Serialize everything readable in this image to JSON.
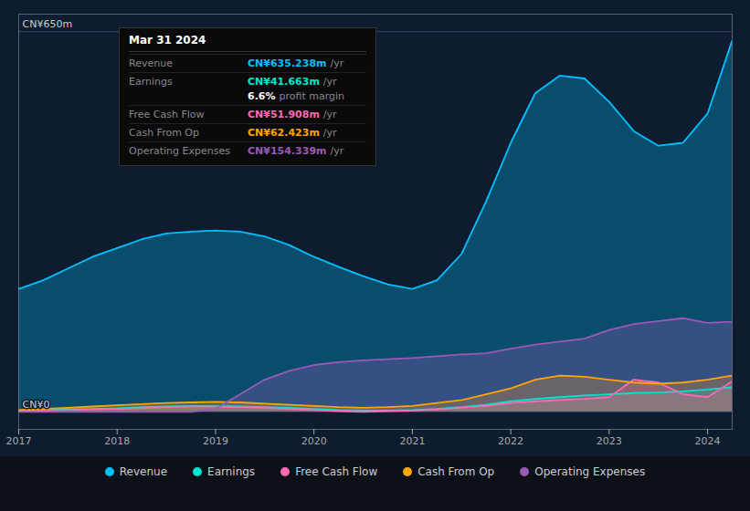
{
  "chart_data": {
    "type": "area",
    "x": [
      2017.0,
      2017.25,
      2017.5,
      2017.75,
      2018.0,
      2018.25,
      2018.5,
      2018.75,
      2019.0,
      2019.25,
      2019.5,
      2019.75,
      2020.0,
      2020.25,
      2020.5,
      2020.75,
      2021.0,
      2021.25,
      2021.5,
      2021.75,
      2022.0,
      2022.25,
      2022.5,
      2022.75,
      2023.0,
      2023.25,
      2023.5,
      2023.75,
      2024.0,
      2024.25
    ],
    "series": [
      {
        "name": "Revenue",
        "color": "#00bfff",
        "values": [
          210,
          225,
          245,
          265,
          280,
          295,
          305,
          308,
          310,
          308,
          300,
          285,
          265,
          248,
          232,
          218,
          210,
          225,
          270,
          360,
          460,
          545,
          575,
          570,
          530,
          480,
          455,
          460,
          510,
          635
        ]
      },
      {
        "name": "Earnings",
        "color": "#00e5cc",
        "values": [
          2,
          3,
          4,
          5,
          6,
          8,
          9,
          10,
          10,
          9,
          8,
          7,
          5,
          3,
          2,
          2,
          3,
          5,
          8,
          12,
          18,
          22,
          25,
          28,
          30,
          32,
          33,
          35,
          38,
          42
        ]
      },
      {
        "name": "Free Cash Flow",
        "color": "#ff69b4",
        "values": [
          1,
          2,
          3,
          4,
          5,
          6,
          8,
          9,
          9,
          8,
          7,
          5,
          3,
          1,
          0,
          1,
          2,
          4,
          7,
          10,
          15,
          18,
          20,
          22,
          25,
          55,
          50,
          30,
          25,
          52
        ]
      },
      {
        "name": "Cash From Op",
        "color": "#ffa500",
        "values": [
          3,
          5,
          7,
          9,
          11,
          13,
          15,
          16,
          17,
          16,
          14,
          12,
          10,
          8,
          7,
          8,
          10,
          15,
          20,
          30,
          40,
          55,
          62,
          60,
          55,
          50,
          48,
          50,
          55,
          62
        ]
      },
      {
        "name": "Operating Expenses",
        "color": "#9b59b6",
        "values": [
          0,
          0,
          0,
          0,
          0,
          0,
          0,
          0,
          5,
          30,
          55,
          70,
          80,
          85,
          88,
          90,
          92,
          95,
          98,
          100,
          108,
          115,
          120,
          125,
          140,
          150,
          155,
          160,
          152,
          154
        ]
      }
    ],
    "xlim": [
      2017,
      2024.25
    ],
    "xticks": [
      2017,
      2018,
      2019,
      2020,
      2021,
      2022,
      2023,
      2024
    ],
    "ylim": [
      -30,
      680
    ],
    "yticks": [
      {
        "value": 0,
        "label": "CN¥0"
      },
      {
        "value": 650,
        "label": "CN¥650m"
      }
    ],
    "grid": true,
    "legend": "bottom",
    "annotations": [
      {
        "title": "Mar 31 2024",
        "rows": [
          {
            "label": "Revenue",
            "value": "CN¥635.238m",
            "unit": "/yr",
            "color": "#00bfff"
          },
          {
            "label": "Earnings",
            "value": "CN¥41.663m",
            "unit": "/yr",
            "color": "#00e5cc"
          },
          {
            "value": "6.6%",
            "text": "profit margin"
          },
          {
            "label": "Free Cash Flow",
            "value": "CN¥51.908m",
            "unit": "/yr",
            "color": "#ff69b4"
          },
          {
            "label": "Cash From Op",
            "value": "CN¥62.423m",
            "unit": "/yr",
            "color": "#ffa500"
          },
          {
            "label": "Operating Expenses",
            "value": "CN¥154.339m",
            "unit": "/yr",
            "color": "#9b59b6"
          }
        ]
      }
    ]
  }
}
